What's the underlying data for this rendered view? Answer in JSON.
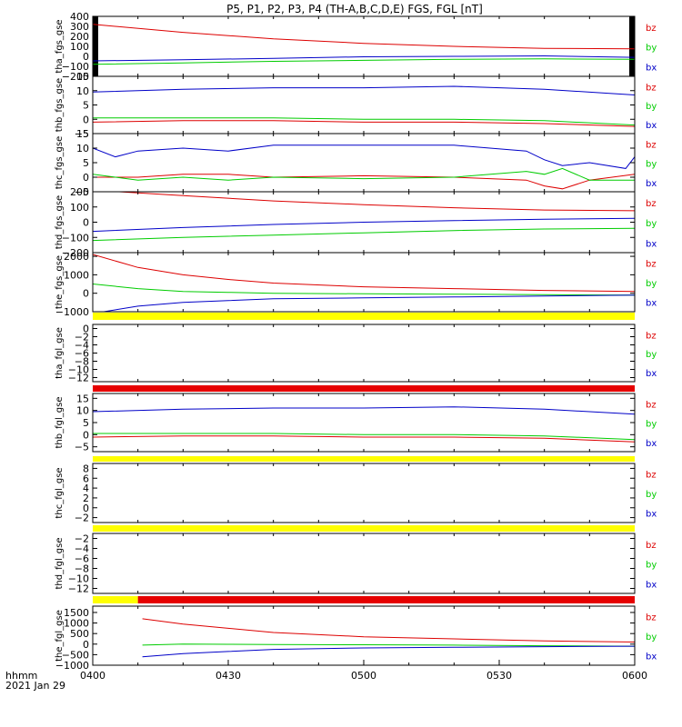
{
  "title": "P5, P1, P2, P3, P4 (TH-A,B,C,D,E) FGS, FGL [nT]",
  "footer": {
    "time_label": "hhmm",
    "date_label": "2021 Jan 29"
  },
  "colors": {
    "bz": "#dd0000",
    "by": "#00cc00",
    "bx": "#0000c8",
    "flag_yellow": "#ffff00",
    "flag_red": "#e60000"
  },
  "x_axis": {
    "ticks": [
      {
        "t": 0,
        "label": "0400"
      },
      {
        "t": 30,
        "label": "0430"
      },
      {
        "t": 60,
        "label": "0500"
      },
      {
        "t": 90,
        "label": "0530"
      },
      {
        "t": 120,
        "label": "0600"
      }
    ]
  },
  "chart_data": [
    {
      "type": "line",
      "ylabel": "tha_fgs_gse",
      "ylim": [
        -200,
        400
      ],
      "yticks": [
        {
          "v": 400,
          "label": "400"
        },
        {
          "v": 300,
          "label": "300"
        },
        {
          "v": 200,
          "label": "200"
        },
        {
          "v": 100,
          "label": "100"
        },
        {
          "v": 0,
          "label": "0"
        },
        {
          "v": -100,
          "label": "−100"
        },
        {
          "v": -200,
          "label": "−200"
        }
      ],
      "legend": [
        "bz",
        "by",
        "bx"
      ],
      "edge_bars": true,
      "series": [
        {
          "name": "bz",
          "x": [
            0,
            20,
            40,
            60,
            80,
            100,
            120
          ],
          "y": [
            320,
            240,
            175,
            130,
            100,
            80,
            75
          ]
        },
        {
          "name": "by",
          "x": [
            0,
            20,
            40,
            60,
            80,
            100,
            120
          ],
          "y": [
            -80,
            -65,
            -50,
            -40,
            -30,
            -25,
            -30
          ]
        },
        {
          "name": "bx",
          "x": [
            0,
            20,
            40,
            60,
            80,
            100,
            120
          ],
          "y": [
            -45,
            -35,
            -20,
            -5,
            0,
            5,
            -10
          ]
        }
      ]
    },
    {
      "type": "line",
      "ylabel": "thb_fgs_gse",
      "ylim": [
        -5,
        15
      ],
      "yticks": [
        {
          "v": 15,
          "label": "15"
        },
        {
          "v": 10,
          "label": "10"
        },
        {
          "v": 5,
          "label": "5"
        },
        {
          "v": 0,
          "label": "0"
        },
        {
          "v": -5,
          "label": "−5"
        }
      ],
      "legend": [
        "bz",
        "by",
        "bx"
      ],
      "series": [
        {
          "name": "bz",
          "x": [
            0,
            20,
            40,
            60,
            80,
            100,
            120
          ],
          "y": [
            -1,
            -0.5,
            -0.5,
            -1,
            -1,
            -1.5,
            -2.5
          ]
        },
        {
          "name": "by",
          "x": [
            0,
            20,
            40,
            60,
            80,
            100,
            120
          ],
          "y": [
            0.5,
            0.5,
            0.5,
            0,
            0,
            -0.5,
            -2
          ]
        },
        {
          "name": "bx",
          "x": [
            0,
            20,
            40,
            60,
            80,
            100,
            120
          ],
          "y": [
            9.5,
            10.5,
            11,
            11,
            11.5,
            10.5,
            8.5
          ]
        }
      ]
    },
    {
      "type": "line",
      "ylabel": "thc_fgs_gse",
      "ylim": [
        -5,
        15
      ],
      "yticks": [
        {
          "v": 15,
          "label": "15"
        },
        {
          "v": 10,
          "label": "10"
        },
        {
          "v": 5,
          "label": "5"
        },
        {
          "v": 0,
          "label": "0"
        },
        {
          "v": -5,
          "label": "−5"
        }
      ],
      "legend": [
        "bz",
        "by",
        "bx"
      ],
      "series": [
        {
          "name": "bz",
          "x": [
            0,
            10,
            20,
            30,
            40,
            60,
            80,
            96,
            100,
            104,
            110,
            120
          ],
          "y": [
            0,
            0,
            1,
            1,
            0,
            0.5,
            0,
            -1,
            -3,
            -4,
            -1,
            1
          ]
        },
        {
          "name": "by",
          "x": [
            0,
            10,
            20,
            30,
            40,
            60,
            80,
            96,
            100,
            104,
            110,
            120
          ],
          "y": [
            1,
            -1,
            0,
            -1,
            0,
            -0.5,
            0,
            2,
            1,
            3,
            -1,
            -1
          ]
        },
        {
          "name": "bx",
          "x": [
            0,
            5,
            10,
            20,
            30,
            40,
            60,
            80,
            96,
            100,
            104,
            110,
            118,
            120
          ],
          "y": [
            10,
            7,
            9,
            10,
            9,
            11,
            11,
            11,
            9,
            6,
            4,
            5,
            3,
            7
          ]
        }
      ]
    },
    {
      "type": "line",
      "ylabel": "thd_fgs_gse",
      "ylim": [
        -200,
        200
      ],
      "yticks": [
        {
          "v": 200,
          "label": "200"
        },
        {
          "v": 100,
          "label": "100"
        },
        {
          "v": 0,
          "label": "0"
        },
        {
          "v": -100,
          "label": "−100"
        },
        {
          "v": -200,
          "label": "−200"
        }
      ],
      "legend": [
        "bz",
        "by",
        "bx"
      ],
      "series": [
        {
          "name": "bz",
          "x": [
            0,
            20,
            40,
            60,
            80,
            100,
            120
          ],
          "y": [
            210,
            175,
            140,
            115,
            95,
            80,
            75
          ]
        },
        {
          "name": "by",
          "x": [
            0,
            20,
            40,
            60,
            80,
            100,
            120
          ],
          "y": [
            -120,
            -100,
            -85,
            -70,
            -55,
            -45,
            -40
          ]
        },
        {
          "name": "bx",
          "x": [
            0,
            20,
            40,
            60,
            80,
            100,
            120
          ],
          "y": [
            -60,
            -35,
            -15,
            0,
            10,
            20,
            25
          ]
        }
      ]
    },
    {
      "type": "line",
      "ylabel": "the_fgs_gse",
      "ylim": [
        -1000,
        2200
      ],
      "yticks": [
        {
          "v": 2000,
          "label": "2000"
        },
        {
          "v": 1000,
          "label": "1000"
        },
        {
          "v": 0,
          "label": "0"
        },
        {
          "v": -1000,
          "label": "−1000"
        }
      ],
      "legend": [
        "bz",
        "by",
        "bx"
      ],
      "series": [
        {
          "name": "bz",
          "x": [
            0,
            10,
            20,
            30,
            40,
            60,
            80,
            100,
            120
          ],
          "y": [
            2100,
            1400,
            1000,
            750,
            550,
            350,
            250,
            150,
            100
          ]
        },
        {
          "name": "by",
          "x": [
            0,
            10,
            20,
            30,
            40,
            60,
            80,
            100,
            120
          ],
          "y": [
            500,
            250,
            100,
            50,
            0,
            -30,
            -50,
            -80,
            -100
          ]
        },
        {
          "name": "bx",
          "x": [
            0,
            10,
            20,
            30,
            40,
            60,
            80,
            100,
            120
          ],
          "y": [
            -1100,
            -700,
            -500,
            -400,
            -300,
            -250,
            -200,
            -150,
            -100
          ]
        }
      ]
    },
    {
      "type": "line",
      "ylabel": "tha_fgl_gse",
      "ylim": [
        -13,
        1
      ],
      "yticks": [
        {
          "v": 0,
          "label": "0"
        },
        {
          "v": -2,
          "label": "−2"
        },
        {
          "v": -4,
          "label": "−4"
        },
        {
          "v": -6,
          "label": "−6"
        },
        {
          "v": -8,
          "label": "−8"
        },
        {
          "v": -10,
          "label": "−10"
        },
        {
          "v": -12,
          "label": "−12"
        }
      ],
      "legend": [
        "bz",
        "by",
        "bx"
      ],
      "flag": [
        {
          "from": 0,
          "to": 120,
          "color": "flag_yellow"
        }
      ],
      "series": []
    },
    {
      "type": "line",
      "ylabel": "thb_fgl_gse",
      "ylim": [
        -7,
        17
      ],
      "yticks": [
        {
          "v": 15,
          "label": "15"
        },
        {
          "v": 10,
          "label": "10"
        },
        {
          "v": 5,
          "label": "5"
        },
        {
          "v": 0,
          "label": "0"
        },
        {
          "v": -5,
          "label": "−5"
        }
      ],
      "legend": [
        "bz",
        "by",
        "bx"
      ],
      "flag": [
        {
          "from": 0,
          "to": 120,
          "color": "flag_red"
        }
      ],
      "series": [
        {
          "name": "bz",
          "x": [
            0,
            20,
            40,
            60,
            80,
            100,
            120
          ],
          "y": [
            -1,
            -0.5,
            -0.5,
            -1,
            -1,
            -1.5,
            -3
          ]
        },
        {
          "name": "by",
          "x": [
            0,
            20,
            40,
            60,
            80,
            100,
            120
          ],
          "y": [
            0.5,
            0.5,
            0.5,
            0,
            0,
            -0.5,
            -2
          ]
        },
        {
          "name": "bx",
          "x": [
            0,
            20,
            40,
            60,
            80,
            100,
            120
          ],
          "y": [
            9.5,
            10.5,
            11,
            11,
            11.5,
            10.5,
            8.5
          ]
        }
      ]
    },
    {
      "type": "line",
      "ylabel": "thc_fgl_gse",
      "ylim": [
        -3,
        9
      ],
      "yticks": [
        {
          "v": 8,
          "label": "8"
        },
        {
          "v": 6,
          "label": "6"
        },
        {
          "v": 4,
          "label": "4"
        },
        {
          "v": 2,
          "label": "2"
        },
        {
          "v": 0,
          "label": "0"
        },
        {
          "v": -2,
          "label": "−2"
        }
      ],
      "legend": [
        "bz",
        "by",
        "bx"
      ],
      "flag": [
        {
          "from": 0,
          "to": 120,
          "color": "flag_yellow"
        }
      ],
      "series": []
    },
    {
      "type": "line",
      "ylabel": "thd_fgl_gse",
      "ylim": [
        -13,
        -1
      ],
      "yticks": [
        {
          "v": -2,
          "label": "−2"
        },
        {
          "v": -4,
          "label": "−4"
        },
        {
          "v": -6,
          "label": "−6"
        },
        {
          "v": -8,
          "label": "−8"
        },
        {
          "v": -10,
          "label": "−10"
        },
        {
          "v": -12,
          "label": "−12"
        }
      ],
      "legend": [
        "bz",
        "by",
        "bx"
      ],
      "flag": [
        {
          "from": 0,
          "to": 120,
          "color": "flag_yellow"
        }
      ],
      "series": []
    },
    {
      "type": "line",
      "ylabel": "the_fgl_gse",
      "ylim": [
        -1000,
        1800
      ],
      "yticks": [
        {
          "v": 1500,
          "label": "1500"
        },
        {
          "v": 1000,
          "label": "1000"
        },
        {
          "v": 500,
          "label": "500"
        },
        {
          "v": 0,
          "label": "0"
        },
        {
          "v": -500,
          "label": "−500"
        },
        {
          "v": -1000,
          "label": "−1000"
        }
      ],
      "legend": [
        "bz",
        "by",
        "bx"
      ],
      "flag": [
        {
          "from": 0,
          "to": 10,
          "color": "flag_yellow"
        },
        {
          "from": 10,
          "to": 120,
          "color": "flag_red"
        }
      ],
      "series": [
        {
          "name": "bz",
          "x": [
            11,
            20,
            30,
            40,
            60,
            80,
            100,
            120
          ],
          "y": [
            1200,
            950,
            750,
            550,
            350,
            250,
            150,
            100
          ]
        },
        {
          "name": "by",
          "x": [
            11,
            20,
            30,
            40,
            60,
            80,
            100,
            120
          ],
          "y": [
            -50,
            0,
            -10,
            -20,
            -30,
            -50,
            -80,
            -100
          ]
        },
        {
          "name": "bx",
          "x": [
            11,
            20,
            30,
            40,
            60,
            80,
            100,
            120
          ],
          "y": [
            -600,
            -450,
            -350,
            -250,
            -180,
            -150,
            -120,
            -100
          ]
        }
      ]
    }
  ]
}
